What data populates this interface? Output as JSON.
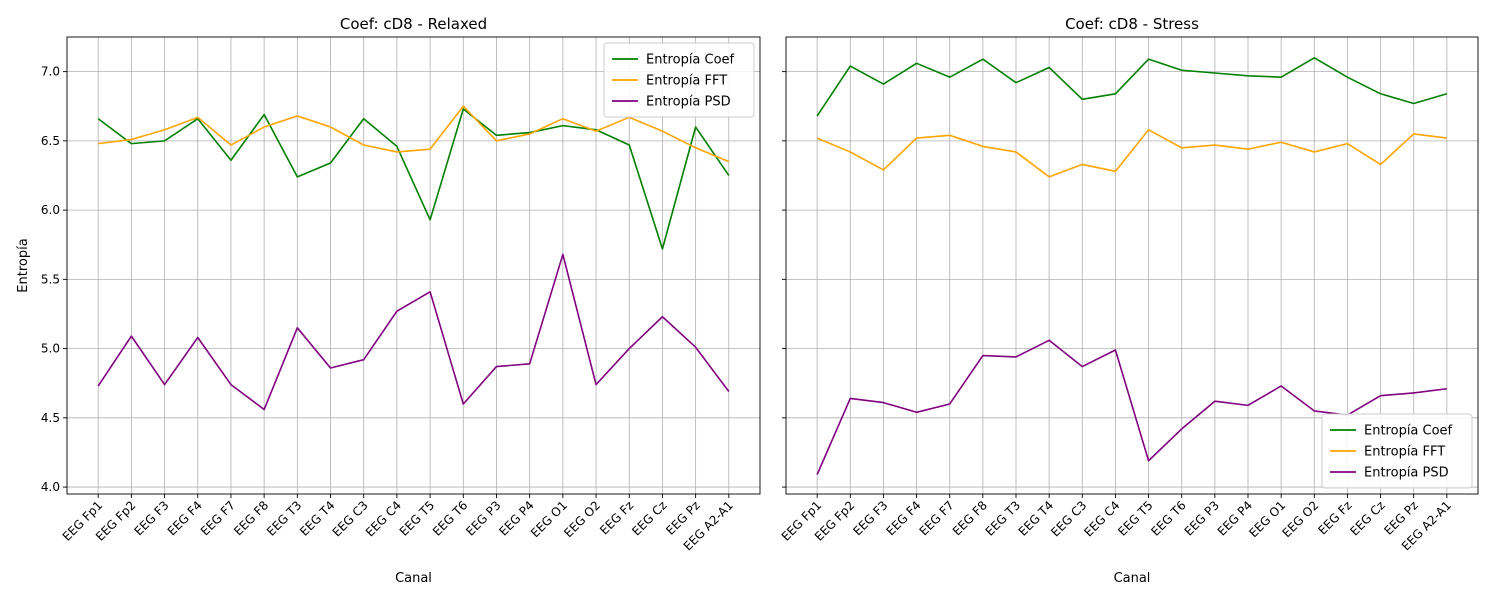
{
  "chart_data": [
    {
      "type": "line",
      "title": "Coef: cD8 - Relaxed",
      "xlabel": "Canal",
      "ylabel": "Entropía",
      "ylim": [
        3.95,
        7.25
      ],
      "yticks": [
        4.0,
        4.5,
        5.0,
        5.5,
        6.0,
        6.5,
        7.0
      ],
      "grid": true,
      "legend": "top-right",
      "categories": [
        "EEG Fp1",
        "EEG Fp2",
        "EEG F3",
        "EEG F4",
        "EEG F7",
        "EEG F8",
        "EEG T3",
        "EEG T4",
        "EEG C3",
        "EEG C4",
        "EEG T5",
        "EEG T6",
        "EEG P3",
        "EEG P4",
        "EEG O1",
        "EEG O2",
        "EEG Fz",
        "EEG Cz",
        "EEG Pz",
        "EEG A2-A1"
      ],
      "series": [
        {
          "name": "Entropía Coef",
          "color": "#008000",
          "values": [
            6.66,
            6.48,
            6.5,
            6.66,
            6.36,
            6.69,
            6.24,
            6.34,
            6.66,
            6.46,
            5.93,
            6.73,
            6.54,
            6.56,
            6.61,
            6.58,
            6.47,
            5.72,
            6.6,
            6.25
          ]
        },
        {
          "name": "Entropía FFT",
          "color": "#FFA500",
          "values": [
            6.48,
            6.51,
            6.58,
            6.67,
            6.47,
            6.6,
            6.68,
            6.6,
            6.47,
            6.42,
            6.44,
            6.75,
            6.5,
            6.55,
            6.66,
            6.57,
            6.67,
            6.57,
            6.45,
            6.35
          ]
        },
        {
          "name": "Entropía PSD",
          "color": "#800080",
          "values": [
            4.73,
            5.09,
            4.74,
            5.08,
            4.74,
            4.56,
            5.15,
            4.86,
            4.92,
            5.27,
            5.41,
            4.6,
            4.87,
            4.89,
            5.68,
            4.74,
            5.0,
            5.23,
            5.01,
            4.69
          ]
        }
      ]
    },
    {
      "type": "line",
      "title": "Coef: cD8 - Stress",
      "xlabel": "Canal",
      "ylabel": "",
      "ylim": [
        3.95,
        7.25
      ],
      "yticks": [
        4.0,
        4.5,
        5.0,
        5.5,
        6.0,
        6.5,
        7.0
      ],
      "grid": true,
      "legend": "bottom-right",
      "categories": [
        "EEG Fp1",
        "EEG Fp2",
        "EEG F3",
        "EEG F4",
        "EEG F7",
        "EEG F8",
        "EEG T3",
        "EEG T4",
        "EEG C3",
        "EEG C4",
        "EEG T5",
        "EEG T6",
        "EEG P3",
        "EEG P4",
        "EEG O1",
        "EEG O2",
        "EEG Fz",
        "EEG Cz",
        "EEG Pz",
        "EEG A2-A1"
      ],
      "series": [
        {
          "name": "Entropía Coef",
          "color": "#008000",
          "values": [
            6.68,
            7.04,
            6.91,
            7.06,
            6.96,
            7.09,
            6.92,
            7.03,
            6.8,
            6.84,
            7.09,
            7.01,
            6.99,
            6.97,
            6.96,
            7.1,
            6.96,
            6.84,
            6.77,
            6.84
          ]
        },
        {
          "name": "Entropía FFT",
          "color": "#FFA500",
          "values": [
            6.52,
            6.42,
            6.29,
            6.52,
            6.54,
            6.46,
            6.42,
            6.24,
            6.33,
            6.28,
            6.58,
            6.45,
            6.47,
            6.44,
            6.49,
            6.42,
            6.48,
            6.33,
            6.55,
            6.52
          ]
        },
        {
          "name": "Entropía PSD",
          "color": "#800080",
          "values": [
            4.09,
            4.64,
            4.61,
            4.54,
            4.6,
            4.95,
            4.94,
            5.06,
            4.87,
            4.99,
            4.19,
            4.42,
            4.62,
            4.59,
            4.73,
            4.55,
            4.52,
            4.66,
            4.68,
            4.71
          ]
        }
      ]
    }
  ]
}
